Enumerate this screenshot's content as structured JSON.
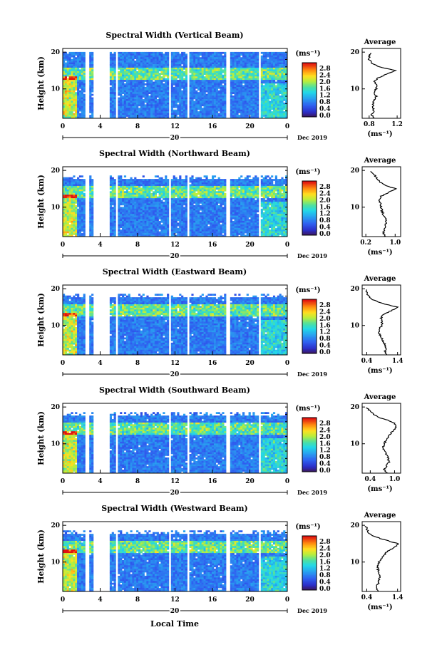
{
  "figure": {
    "xlabel": "Local Time"
  },
  "chart_data": [
    {
      "type": "heatmap",
      "title": "Spectral Width (Vertical Beam)",
      "ylabel": "Height (km)",
      "yticks": [
        "20",
        "10"
      ],
      "xticks": [
        "0",
        "4",
        "8",
        "12",
        "16",
        "20",
        "0"
      ],
      "date_day": "20",
      "date_label": "Dec 2019",
      "colorbar": {
        "unit": "(ms⁻¹)",
        "ticks": [
          "2.8",
          "2.4",
          "2.0",
          "1.6",
          "1.2",
          "0.8",
          "0.4",
          "0.0"
        ]
      },
      "profile": {
        "title": "Average",
        "xticks": [
          "0.8",
          "1.2"
        ],
        "xrange": [
          0.7,
          1.25
        ],
        "yticks": [
          "20",
          "10"
        ],
        "height_km": [
          2,
          3,
          4,
          5,
          6,
          7,
          8,
          9,
          10,
          11,
          12,
          13,
          14,
          15,
          16,
          17,
          18,
          19,
          20
        ],
        "width_ms": [
          0.86,
          0.84,
          0.87,
          0.85,
          0.86,
          0.87,
          0.9,
          0.88,
          0.9,
          0.9,
          0.88,
          0.93,
          1.05,
          1.18,
          0.95,
          0.84,
          0.8,
          0.8,
          0.82
        ]
      }
    },
    {
      "type": "heatmap",
      "title": "Spectral Width (Northward Beam)",
      "ylabel": "Height (km)",
      "yticks": [
        "20",
        "10"
      ],
      "xticks": [
        "0",
        "4",
        "8",
        "12",
        "16",
        "20",
        "0"
      ],
      "date_day": "20",
      "date_label": "Dec 2019",
      "colorbar": {
        "unit": "(ms⁻¹)",
        "ticks": [
          "2.8",
          "2.4",
          "2.0",
          "1.6",
          "1.2",
          "0.8",
          "0.4",
          "0.0"
        ]
      },
      "profile": {
        "title": "Average",
        "xticks": [
          "0.2",
          "1.0"
        ],
        "xrange": [
          0.1,
          1.15
        ],
        "yticks": [
          "20",
          "10"
        ],
        "height_km": [
          2,
          3,
          4,
          5,
          6,
          7,
          8,
          9,
          10,
          11,
          12,
          13,
          14,
          15,
          16,
          17,
          18,
          19,
          20
        ],
        "width_ms": [
          0.72,
          0.68,
          0.7,
          0.74,
          0.76,
          0.74,
          0.68,
          0.64,
          0.62,
          0.6,
          0.56,
          0.62,
          0.82,
          1.02,
          0.72,
          0.56,
          0.5,
          0.42,
          0.3
        ]
      }
    },
    {
      "type": "heatmap",
      "title": "Spectral Width (Eastward Beam)",
      "ylabel": "Height (km)",
      "yticks": [
        "20",
        "10"
      ],
      "xticks": [
        "0",
        "4",
        "8",
        "12",
        "16",
        "20",
        "0"
      ],
      "date_day": "20",
      "date_label": "Dec 2019",
      "colorbar": {
        "unit": "(ms⁻¹)",
        "ticks": [
          "2.8",
          "2.4",
          "2.0",
          "1.6",
          "1.2",
          "0.8",
          "0.4",
          "0.0"
        ]
      },
      "profile": {
        "title": "Average",
        "xticks": [
          "0.4",
          "1.4"
        ],
        "xrange": [
          0.25,
          1.5
        ],
        "yticks": [
          "20",
          "10"
        ],
        "height_km": [
          2,
          3,
          4,
          5,
          6,
          7,
          8,
          9,
          10,
          11,
          12,
          13,
          14,
          15,
          16,
          17,
          18,
          19,
          20
        ],
        "width_ms": [
          1.05,
          1.0,
          1.02,
          0.98,
          0.92,
          0.86,
          0.8,
          0.82,
          0.88,
          0.9,
          0.86,
          0.95,
          1.2,
          1.38,
          0.92,
          0.6,
          0.46,
          0.4,
          0.36
        ]
      }
    },
    {
      "type": "heatmap",
      "title": "Spectral Width (Southward Beam)",
      "ylabel": "Height (km)",
      "yticks": [
        "20",
        "10"
      ],
      "xticks": [
        "0",
        "4",
        "8",
        "12",
        "16",
        "20",
        "0"
      ],
      "date_day": "20",
      "date_label": "Dec 2019",
      "colorbar": {
        "unit": "(ms⁻¹)",
        "ticks": [
          "2.8",
          "2.4",
          "2.0",
          "1.6",
          "1.2",
          "0.8",
          "0.4",
          "0.0"
        ]
      },
      "profile": {
        "title": "Average",
        "xticks": [
          "0.4",
          "1.0"
        ],
        "xrange": [
          0.2,
          1.15
        ],
        "yticks": [
          "20",
          "10"
        ],
        "height_km": [
          2,
          3,
          4,
          5,
          6,
          7,
          8,
          9,
          10,
          11,
          12,
          13,
          14,
          15,
          16,
          17,
          18,
          19,
          20
        ],
        "width_ms": [
          0.82,
          0.74,
          0.8,
          0.86,
          0.84,
          0.8,
          0.76,
          0.72,
          0.74,
          0.8,
          0.86,
          0.92,
          1.0,
          1.05,
          0.94,
          0.66,
          0.48,
          0.38,
          0.3
        ]
      }
    },
    {
      "type": "heatmap",
      "title": "Spectral Width (Westward Beam)",
      "ylabel": "Height (km)",
      "yticks": [
        "20",
        "10"
      ],
      "xticks": [
        "0",
        "4",
        "8",
        "12",
        "16",
        "20",
        "0"
      ],
      "date_day": "20",
      "date_label": "Dec 2019",
      "colorbar": {
        "unit": "(ms⁻¹)",
        "ticks": [
          "2.8",
          "2.4",
          "2.0",
          "1.6",
          "1.2",
          "0.8",
          "0.4",
          "0.0"
        ]
      },
      "profile": {
        "title": "Average",
        "xticks": [
          "0.4",
          "1.4"
        ],
        "xrange": [
          0.25,
          1.5
        ],
        "yticks": [
          "20",
          "10"
        ],
        "height_km": [
          2,
          3,
          4,
          5,
          6,
          7,
          8,
          9,
          10,
          11,
          12,
          13,
          14,
          15,
          16,
          17,
          18,
          19,
          20
        ],
        "width_ms": [
          0.78,
          0.72,
          0.76,
          0.8,
          0.82,
          0.8,
          0.76,
          0.74,
          0.8,
          0.88,
          0.96,
          1.1,
          1.3,
          1.42,
          1.0,
          0.62,
          0.46,
          0.4,
          0.36
        ]
      }
    }
  ]
}
